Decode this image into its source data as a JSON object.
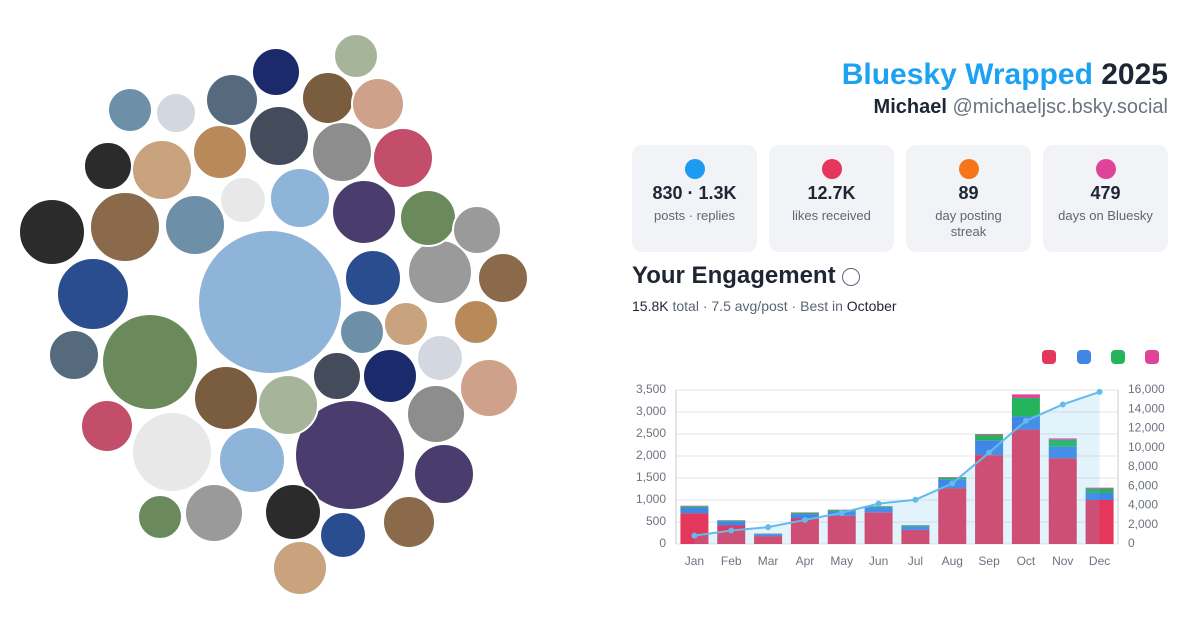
{
  "header": {
    "title": "Bluesky Wrapped",
    "year": "2025",
    "name": "Michael",
    "handle": "@michaeljsc.bsky.social"
  },
  "stats": [
    {
      "value": "830 · 1.3K",
      "label": "posts · replies"
    },
    {
      "value": "12.7K",
      "label": "likes received"
    },
    {
      "value": "89",
      "label": "day posting streak"
    },
    {
      "value": "479",
      "label": "days on Bluesky"
    }
  ],
  "engagement": {
    "title": "Your Engagement",
    "total": "15.8K",
    "summary": "total · 7.5 avg/post · Best in",
    "best": "October"
  },
  "chart_data": {
    "type": "bar",
    "stacked": true,
    "grid": true,
    "categories": [
      "Jan",
      "Feb",
      "Mar",
      "Apr",
      "May",
      "Jun",
      "Jul",
      "Aug",
      "Sep",
      "Oct",
      "Nov",
      "Dec"
    ],
    "series": [
      {
        "color": "#e5375c",
        "values": [
          700,
          420,
          180,
          580,
          640,
          720,
          320,
          1270,
          2020,
          2600,
          1950,
          1000
        ]
      },
      {
        "color": "#3f86e6",
        "values": [
          130,
          100,
          45,
          100,
          100,
          110,
          80,
          200,
          340,
          300,
          260,
          160
        ]
      },
      {
        "color": "#25b35c",
        "values": [
          30,
          15,
          10,
          30,
          30,
          25,
          25,
          40,
          120,
          420,
          160,
          100
        ]
      },
      {
        "color": "#e0449a",
        "values": [
          10,
          5,
          5,
          10,
          10,
          5,
          5,
          10,
          20,
          80,
          30,
          20
        ]
      },
      {
        "type": "line",
        "axis": "y2",
        "color": "#62bbec",
        "values": [
          870,
          1400,
          1750,
          2500,
          3250,
          4200,
          4600,
          6300,
          9500,
          12800,
          14500,
          15800
        ]
      }
    ],
    "ylim": [
      0,
      3500
    ],
    "yticks": [
      0,
      500,
      {
        "value": 1000,
        "label": "1,000"
      },
      {
        "value": 1500,
        "label": "1,500"
      },
      {
        "value": 2000,
        "label": "2,000"
      },
      {
        "value": 2500,
        "label": "2,500"
      },
      {
        "value": 3000,
        "label": "3,000"
      },
      {
        "value": 3500,
        "label": "3,500"
      }
    ],
    "y2lim": [
      0,
      16000
    ],
    "y2ticks": [
      0,
      {
        "value": 2000,
        "label": "2,000"
      },
      {
        "value": 4000,
        "label": "4,000"
      },
      {
        "value": 6000,
        "label": "6,000"
      },
      {
        "value": 8000,
        "label": "8,000"
      },
      {
        "value": 10000,
        "label": "10,000"
      },
      {
        "value": 12000,
        "label": "12,000"
      },
      {
        "value": 14000,
        "label": "14,000"
      },
      {
        "value": 16000,
        "label": "16,000"
      }
    ]
  }
}
